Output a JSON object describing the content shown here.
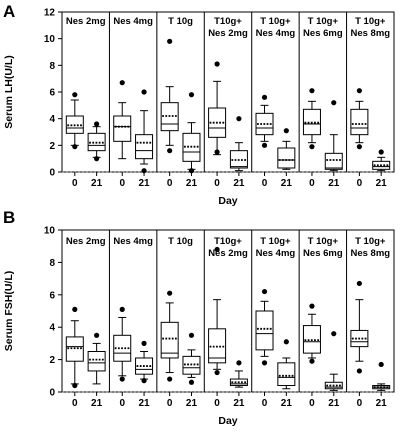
{
  "chart_data": [
    {
      "type": "boxplot",
      "panel_letter": "A",
      "ylabel": "Serum LH(U/L)",
      "xlabel": "Day",
      "ylim": [
        0,
        12
      ],
      "yticks": [
        0,
        2,
        4,
        6,
        8,
        10,
        12
      ],
      "reference_line": 0,
      "groups": [
        {
          "label": [
            "Nes 2mg"
          ],
          "days": [
            {
              "day": "0",
              "min": 2.0,
              "q1": 2.9,
              "median": 3.3,
              "mean": 3.5,
              "q3": 4.2,
              "max": 5.4,
              "outliers": [
                5.8,
                1.9
              ]
            },
            {
              "day": "21",
              "min": 1.1,
              "q1": 1.6,
              "median": 2.0,
              "mean": 2.2,
              "q3": 2.9,
              "max": 3.4,
              "outliers": [
                3.6,
                1.0
              ]
            }
          ]
        },
        {
          "label": [
            "Nes 4mg"
          ],
          "days": [
            {
              "day": "0",
              "min": 1.0,
              "q1": 2.3,
              "median": 3.4,
              "mean": 3.4,
              "q3": 4.2,
              "max": 5.2,
              "outliers": [
                6.7
              ]
            },
            {
              "day": "21",
              "min": 0.6,
              "q1": 1.0,
              "median": 1.6,
              "mean": 2.2,
              "q3": 2.8,
              "max": 4.6,
              "outliers": [
                6.0,
                0.1
              ]
            }
          ]
        },
        {
          "label": [
            "T 10g"
          ],
          "days": [
            {
              "day": "0",
              "min": 2.0,
              "q1": 3.1,
              "median": 3.6,
              "mean": 4.2,
              "q3": 5.2,
              "max": 6.4,
              "outliers": [
                9.8,
                1.6
              ]
            },
            {
              "day": "21",
              "min": 0.2,
              "q1": 0.8,
              "median": 1.5,
              "mean": 1.9,
              "q3": 2.9,
              "max": 3.7,
              "outliers": [
                5.8,
                0.1
              ]
            }
          ]
        },
        {
          "label": [
            "T10g+",
            "Nes 2mg"
          ],
          "days": [
            {
              "day": "0",
              "min": 1.3,
              "q1": 2.6,
              "median": 3.3,
              "mean": 3.7,
              "q3": 4.8,
              "max": 6.8,
              "outliers": [
                8.1,
                1.5
              ]
            },
            {
              "day": "21",
              "min": 0.1,
              "q1": 0.3,
              "median": 0.4,
              "mean": 0.9,
              "q3": 1.6,
              "max": 2.2,
              "outliers": [
                4.0
              ]
            }
          ]
        },
        {
          "label": [
            "T 10g+",
            "Nes 4mg"
          ],
          "days": [
            {
              "day": "0",
              "min": 2.3,
              "q1": 2.8,
              "median": 3.3,
              "mean": 3.6,
              "q3": 4.4,
              "max": 5.0,
              "outliers": [
                5.6,
                2.0
              ]
            },
            {
              "day": "21",
              "min": 0.2,
              "q1": 0.3,
              "median": 0.9,
              "mean": 0.9,
              "q3": 1.8,
              "max": 2.3,
              "outliers": [
                3.1
              ]
            }
          ]
        },
        {
          "label": [
            "T 10g+",
            "Nes 6mg"
          ],
          "days": [
            {
              "day": "0",
              "min": 2.2,
              "q1": 2.8,
              "median": 3.6,
              "mean": 3.7,
              "q3": 4.7,
              "max": 5.3,
              "outliers": [
                6.1,
                1.9
              ]
            },
            {
              "day": "21",
              "min": 0.1,
              "q1": 0.2,
              "median": 0.3,
              "mean": 0.9,
              "q3": 1.4,
              "max": 2.8,
              "outliers": [
                5.2
              ]
            }
          ]
        },
        {
          "label": [
            "T 10g+",
            "Nes 8mg"
          ],
          "days": [
            {
              "day": "0",
              "min": 2.2,
              "q1": 2.8,
              "median": 3.3,
              "mean": 3.6,
              "q3": 4.7,
              "max": 5.3,
              "outliers": [
                6.1,
                1.9
              ]
            },
            {
              "day": "21",
              "min": 0.1,
              "q1": 0.2,
              "median": 0.4,
              "mean": 0.5,
              "q3": 0.8,
              "max": 1.1,
              "outliers": [
                1.5
              ]
            }
          ]
        }
      ],
      "x_ticks": [
        "0",
        "21"
      ]
    },
    {
      "type": "boxplot",
      "panel_letter": "B",
      "ylabel": "Serum FSH(U/L)",
      "xlabel": "Day",
      "ylim": [
        0,
        10
      ],
      "yticks": [
        0,
        2,
        4,
        6,
        8,
        10
      ],
      "reference_line": 0,
      "groups": [
        {
          "label": [
            "Nes 2mg"
          ],
          "days": [
            {
              "day": "0",
              "min": 0.5,
              "q1": 1.9,
              "median": 2.8,
              "mean": 2.7,
              "q3": 3.4,
              "max": 4.4,
              "outliers": [
                5.1,
                0.4
              ]
            },
            {
              "day": "21",
              "min": 0.5,
              "q1": 1.3,
              "median": 1.8,
              "mean": 2.0,
              "q3": 2.5,
              "max": 3.0,
              "outliers": [
                3.5
              ]
            }
          ]
        },
        {
          "label": [
            "Nes 4mg"
          ],
          "days": [
            {
              "day": "0",
              "min": 1.0,
              "q1": 1.9,
              "median": 2.4,
              "mean": 2.7,
              "q3": 3.5,
              "max": 4.6,
              "outliers": [
                5.1,
                0.8
              ]
            },
            {
              "day": "21",
              "min": 0.8,
              "q1": 1.1,
              "median": 1.4,
              "mean": 1.6,
              "q3": 2.1,
              "max": 2.5,
              "outliers": [
                3.0,
                0.7
              ]
            }
          ]
        },
        {
          "label": [
            "T 10g"
          ],
          "days": [
            {
              "day": "0",
              "min": 1.2,
              "q1": 2.1,
              "median": 2.4,
              "mean": 3.3,
              "q3": 4.3,
              "max": 5.5,
              "outliers": [
                6.1,
                0.8
              ]
            },
            {
              "day": "21",
              "min": 0.9,
              "q1": 1.1,
              "median": 1.5,
              "mean": 1.7,
              "q3": 2.2,
              "max": 2.6,
              "outliers": [
                3.5,
                0.6
              ]
            }
          ]
        },
        {
          "label": [
            "T10g+",
            "Nes 2mg"
          ],
          "days": [
            {
              "day": "0",
              "min": 1.4,
              "q1": 1.8,
              "median": 2.1,
              "mean": 2.8,
              "q3": 3.9,
              "max": 5.7,
              "outliers": [
                8.8,
                1.2
              ]
            },
            {
              "day": "21",
              "min": 0.3,
              "q1": 0.4,
              "median": 0.5,
              "mean": 0.6,
              "q3": 0.8,
              "max": 1.3,
              "outliers": [
                1.8
              ]
            }
          ]
        },
        {
          "label": [
            "T 10g+",
            "Nes 4mg"
          ],
          "days": [
            {
              "day": "0",
              "min": 2.2,
              "q1": 2.6,
              "median": 3.6,
              "mean": 3.9,
              "q3": 5.0,
              "max": 5.6,
              "outliers": [
                6.2,
                1.8
              ]
            },
            {
              "day": "21",
              "min": 0.2,
              "q1": 0.4,
              "median": 0.9,
              "mean": 1.0,
              "q3": 1.8,
              "max": 2.1,
              "outliers": [
                3.1
              ]
            }
          ]
        },
        {
          "label": [
            "T 10g+",
            "Nes 6mg"
          ],
          "days": [
            {
              "day": "0",
              "min": 2.1,
              "q1": 2.4,
              "median": 3.1,
              "mean": 3.2,
              "q3": 4.1,
              "max": 4.8,
              "outliers": [
                5.3,
                1.9
              ]
            },
            {
              "day": "21",
              "min": 0.1,
              "q1": 0.2,
              "median": 0.3,
              "mean": 0.4,
              "q3": 0.6,
              "max": 1.1,
              "outliers": [
                3.6
              ]
            }
          ]
        },
        {
          "label": [
            "T 10g+",
            "Nes 8mg"
          ],
          "days": [
            {
              "day": "0",
              "min": 1.9,
              "q1": 2.8,
              "median": 3.1,
              "mean": 3.3,
              "q3": 3.8,
              "max": 5.7,
              "outliers": [
                6.7,
                1.3
              ]
            },
            {
              "day": "21",
              "min": 0.1,
              "q1": 0.2,
              "median": 0.3,
              "mean": 0.3,
              "q3": 0.4,
              "max": 0.5,
              "outliers": [
                1.7
              ]
            }
          ]
        }
      ],
      "x_ticks": [
        "0",
        "21"
      ]
    }
  ]
}
